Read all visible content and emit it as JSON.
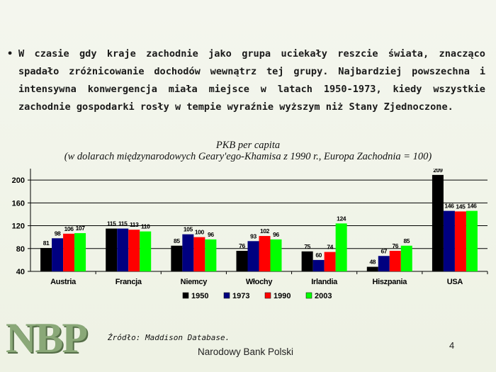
{
  "bullet": {
    "symbol": "•",
    "text": "W czasie gdy kraje zachodnie jako grupa uciekały reszcie świata, znacząco spadało zróżnicowanie dochodów wewnątrz tej grupy. Najbardziej powszechna i intensywna konwergencja miała miejsce w latach 1950-1973, kiedy wszystkie zachodnie gospodarki rosły w tempie wyraźnie wyższym niż Stany Zjednoczone."
  },
  "chart_data": {
    "type": "bar",
    "title": "PKB per capita",
    "subtitle": "(w dolarach międzynarodowych Geary'ego-Khamisa z 1990 r., Europa Zachodnia = 100)",
    "categories": [
      "Austria",
      "Francja",
      "Niemcy",
      "Włochy",
      "Irlandia",
      "Hiszpania",
      "USA"
    ],
    "series": [
      {
        "name": "1950",
        "color": "#000000",
        "values": [
          81,
          115,
          85,
          76,
          75,
          48,
          209
        ]
      },
      {
        "name": "1973",
        "color": "#000080",
        "values": [
          98,
          115,
          105,
          93,
          60,
          67,
          146
        ]
      },
      {
        "name": "1990",
        "color": "#ff0000",
        "values": [
          106,
          113,
          100,
          102,
          74,
          76,
          145
        ]
      },
      {
        "name": "2003",
        "color": "#00ff00",
        "values": [
          107,
          110,
          96,
          96,
          124,
          85,
          146
        ]
      }
    ],
    "yticks": [
      40,
      80,
      120,
      160,
      200
    ],
    "ylim": [
      40,
      220
    ],
    "grid": true,
    "legend": "bottom"
  },
  "footer": {
    "source": "Źródło: Maddison Database.",
    "bank_name": "Narodowy Bank Polski",
    "page_number": "4",
    "logo_text": "NBP"
  }
}
